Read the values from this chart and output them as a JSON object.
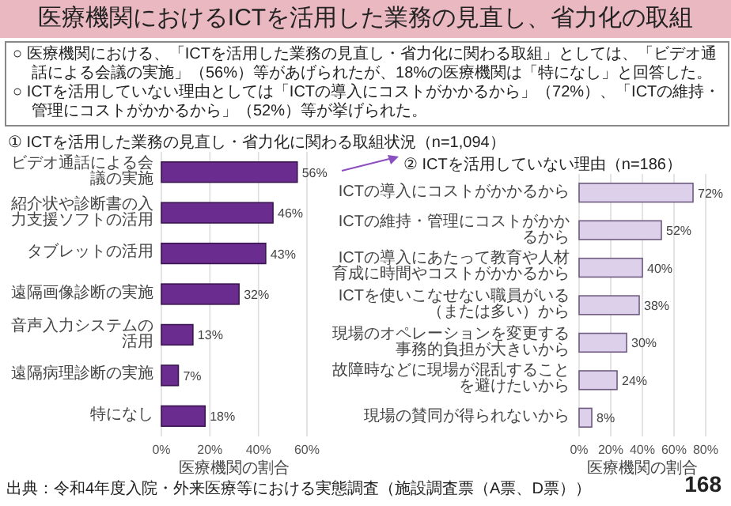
{
  "chart_data": [
    {
      "type": "other",
      "title": "医療機関におけるICTを活用した業務の見直し、省力化の取組",
      "annotations": [
        "○ 医療機関における、「ICTを活用した業務の見直し・省力化に関わる取組」としては、「ビデオ通話による会議の実施」（56%）等があげられたが、18%の医療機関は「特になし」と回答した。",
        "○ ICTを活用していない理由としては「ICTの導入にコストがかかるから」（72%）、「ICTの維持・管理にコストがかかるから」（52%）等が挙げられた。",
        "出典：令和4年度入院・外来医療等における実態調査（施設調査票（A票、D票））",
        "168"
      ]
    },
    {
      "type": "bar",
      "orientation": "horizontal",
      "title": "① ICTを活用した業務の見直し・省力化に関わる取組状況（n=1,094）",
      "categories": [
        "ビデオ通話による会議の実施",
        "紹介状や診断書の入力支援ソフトの活用",
        "タブレットの活用",
        "遠隔画像診断の実施",
        "音声入力システムの活用",
        "遠隔病理診断の実施",
        "特になし"
      ],
      "values": [
        56,
        46,
        43,
        32,
        13,
        7,
        18
      ],
      "value_labels": [
        "56%",
        "46%",
        "43%",
        "32%",
        "13%",
        "7%",
        "18%"
      ],
      "color": "#6a2c8e",
      "xlabel": "医療機関の割合",
      "xlim": [
        0,
        60
      ],
      "xticks": [
        {
          "value": 0,
          "label": "0%"
        },
        {
          "value": 20,
          "label": "20%"
        },
        {
          "value": 40,
          "label": "40%"
        },
        {
          "value": 60,
          "label": "60%"
        }
      ],
      "grid": "x"
    },
    {
      "type": "bar",
      "orientation": "horizontal",
      "title": "② ICTを活用していない理由（n=186）",
      "categories": [
        "ICTの導入にコストがかかるから",
        "ICTの維持・管理にコストがかかるから",
        "ICTの導入にあたって教育や人材育成に時間やコストがかかるから",
        "ICTを使いこなせない職員がいる（または多い）から",
        "現場のオペレーションを変更する事務的負担が大きいから",
        "故障時などに現場が混乱することを避けたいから",
        "現場の賛同が得られないから"
      ],
      "values": [
        72,
        52,
        40,
        38,
        30,
        24,
        8
      ],
      "value_labels": [
        "72%",
        "52%",
        "40%",
        "38%",
        "30%",
        "24%",
        "8%"
      ],
      "color": "#ddd0ea",
      "xlabel": "医療機関の割合",
      "xlim": [
        0,
        80
      ],
      "xticks": [
        {
          "value": 0,
          "label": "0%"
        },
        {
          "value": 20,
          "label": "20%"
        },
        {
          "value": 40,
          "label": "40%"
        },
        {
          "value": 60,
          "label": "60%"
        },
        {
          "value": 80,
          "label": "80%"
        }
      ],
      "grid": "x"
    }
  ]
}
